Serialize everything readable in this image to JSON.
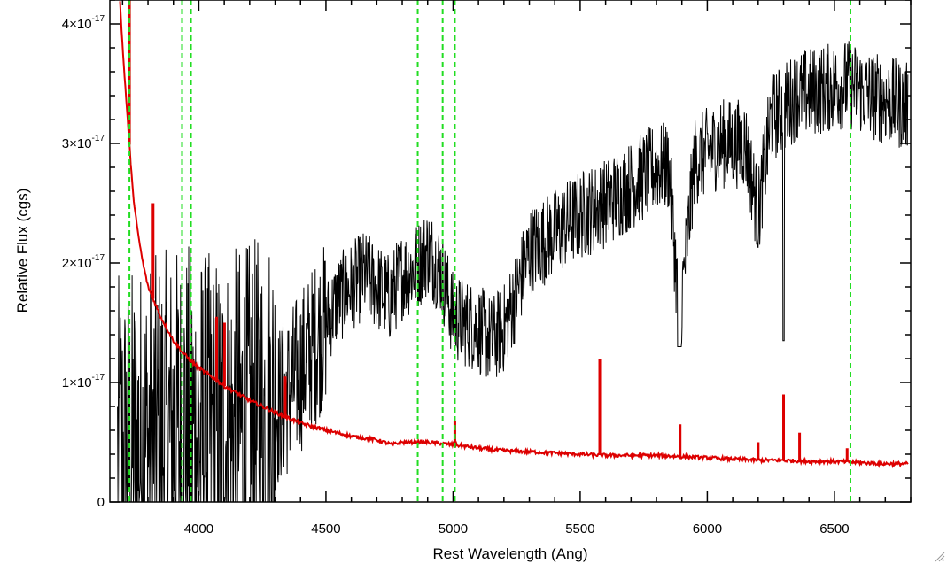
{
  "chart_data": {
    "type": "line",
    "title": "",
    "xlabel": "Rest Wavelength (Ang)",
    "ylabel": "Relative Flux (cgs)",
    "xlim": [
      3650,
      6800
    ],
    "ylim": [
      0,
      4.2e-17
    ],
    "x_ticks": [
      4000,
      4500,
      5000,
      5500,
      6000,
      6500
    ],
    "x_tick_labels": [
      "4000",
      "4500",
      "5000",
      "5500",
      "6000",
      "6500"
    ],
    "y_ticks": [
      0,
      1e-17,
      2e-17,
      3e-17,
      4e-17
    ],
    "y_tick_labels": [
      {
        "mantissa": "0",
        "exponent": ""
      },
      {
        "mantissa": "1×10",
        "exponent": "-17"
      },
      {
        "mantissa": "2×10",
        "exponent": "-17"
      },
      {
        "mantissa": "3×10",
        "exponent": "-17"
      },
      {
        "mantissa": "4×10",
        "exponent": "-17"
      }
    ],
    "grid": false,
    "series": [
      {
        "color": "#000000",
        "style": "solid-noisy",
        "x": [
          3680,
          3750,
          3850,
          3950,
          4050,
          4150,
          4250,
          4350,
          4450,
          4550,
          4650,
          4750,
          4800,
          4850,
          4900,
          4950,
          5000,
          5050,
          5100,
          5150,
          5200,
          5250,
          5300,
          5400,
          5500,
          5600,
          5700,
          5800,
          5850,
          5890,
          5950,
          6050,
          6150,
          6200,
          6250,
          6300,
          6350,
          6450,
          6550,
          6650,
          6790
        ],
        "y": [
          3e-18,
          4e-18,
          5e-18,
          6e-18,
          5e-18,
          5.5e-18,
          6.5e-18,
          9e-18,
          1.3e-17,
          1.7e-17,
          1.9e-17,
          1.7e-17,
          1.9e-17,
          1.95e-17,
          2.1e-17,
          1.95e-17,
          1.55e-17,
          1.5e-17,
          1.45e-17,
          1.35e-17,
          1.45e-17,
          1.75e-17,
          2.1e-17,
          2.25e-17,
          2.4e-17,
          2.5e-17,
          2.65e-17,
          2.8e-17,
          2.8e-17,
          1.5e-17,
          2.85e-17,
          3e-17,
          3e-17,
          2.4e-17,
          3.2e-17,
          3.3e-17,
          3.4e-17,
          3.45e-17,
          3.5e-17,
          3.4e-17,
          3.3e-17
        ]
      },
      {
        "color": "#dd0000",
        "style": "solid",
        "x": [
          3690,
          3700,
          3720,
          3740,
          3760,
          3780,
          3800,
          3850,
          3900,
          3950,
          4000,
          4050,
          4100,
          4200,
          4300,
          4400,
          4500,
          4600,
          4700,
          4760,
          4800,
          4850,
          4900,
          5000,
          5100,
          5200,
          5300,
          5400,
          5500,
          5600,
          5700,
          5800,
          5900,
          6000,
          6100,
          6200,
          6300,
          6400,
          6500,
          6600,
          6700,
          6790
        ],
        "y": [
          4.2e-17,
          3.8e-17,
          3.2e-17,
          2.6e-17,
          2.25e-17,
          2e-17,
          1.8e-17,
          1.55e-17,
          1.35e-17,
          1.22e-17,
          1.12e-17,
          1.05e-17,
          9.7e-18,
          8.5e-18,
          7.5e-18,
          6.6e-18,
          6e-18,
          5.5e-18,
          5.2e-18,
          4.8e-18,
          5e-18,
          5e-18,
          5e-18,
          4.8e-18,
          4.5e-18,
          4.3e-18,
          4.2e-18,
          4.1e-18,
          4e-18,
          3.9e-18,
          3.9e-18,
          3.9e-18,
          3.8e-18,
          3.7e-18,
          3.6e-18,
          3.5e-18,
          3.5e-18,
          3.4e-18,
          3.4e-18,
          3.3e-18,
          3.2e-18,
          3.2e-18
        ]
      }
    ],
    "red_spikes": [
      {
        "x": 3727,
        "y": 4.2e-17
      },
      {
        "x": 3820,
        "y": 2.5e-17
      },
      {
        "x": 4070,
        "y": 1.55e-17
      },
      {
        "x": 4101,
        "y": 1.5e-17
      },
      {
        "x": 4340,
        "y": 1.05e-17
      },
      {
        "x": 5007,
        "y": 6.8e-18
      },
      {
        "x": 5577,
        "y": 1.2e-17
      },
      {
        "x": 5893,
        "y": 6.5e-18
      },
      {
        "x": 6200,
        "y": 5e-18
      },
      {
        "x": 6300,
        "y": 9e-18
      },
      {
        "x": 6363,
        "y": 5.8e-18
      },
      {
        "x": 6550,
        "y": 4.5e-18
      }
    ],
    "reference_lines": {
      "color": "#22dd22",
      "style": "dashed",
      "x": [
        3727,
        3934,
        3969,
        4861,
        4959,
        5007,
        6563
      ]
    }
  }
}
